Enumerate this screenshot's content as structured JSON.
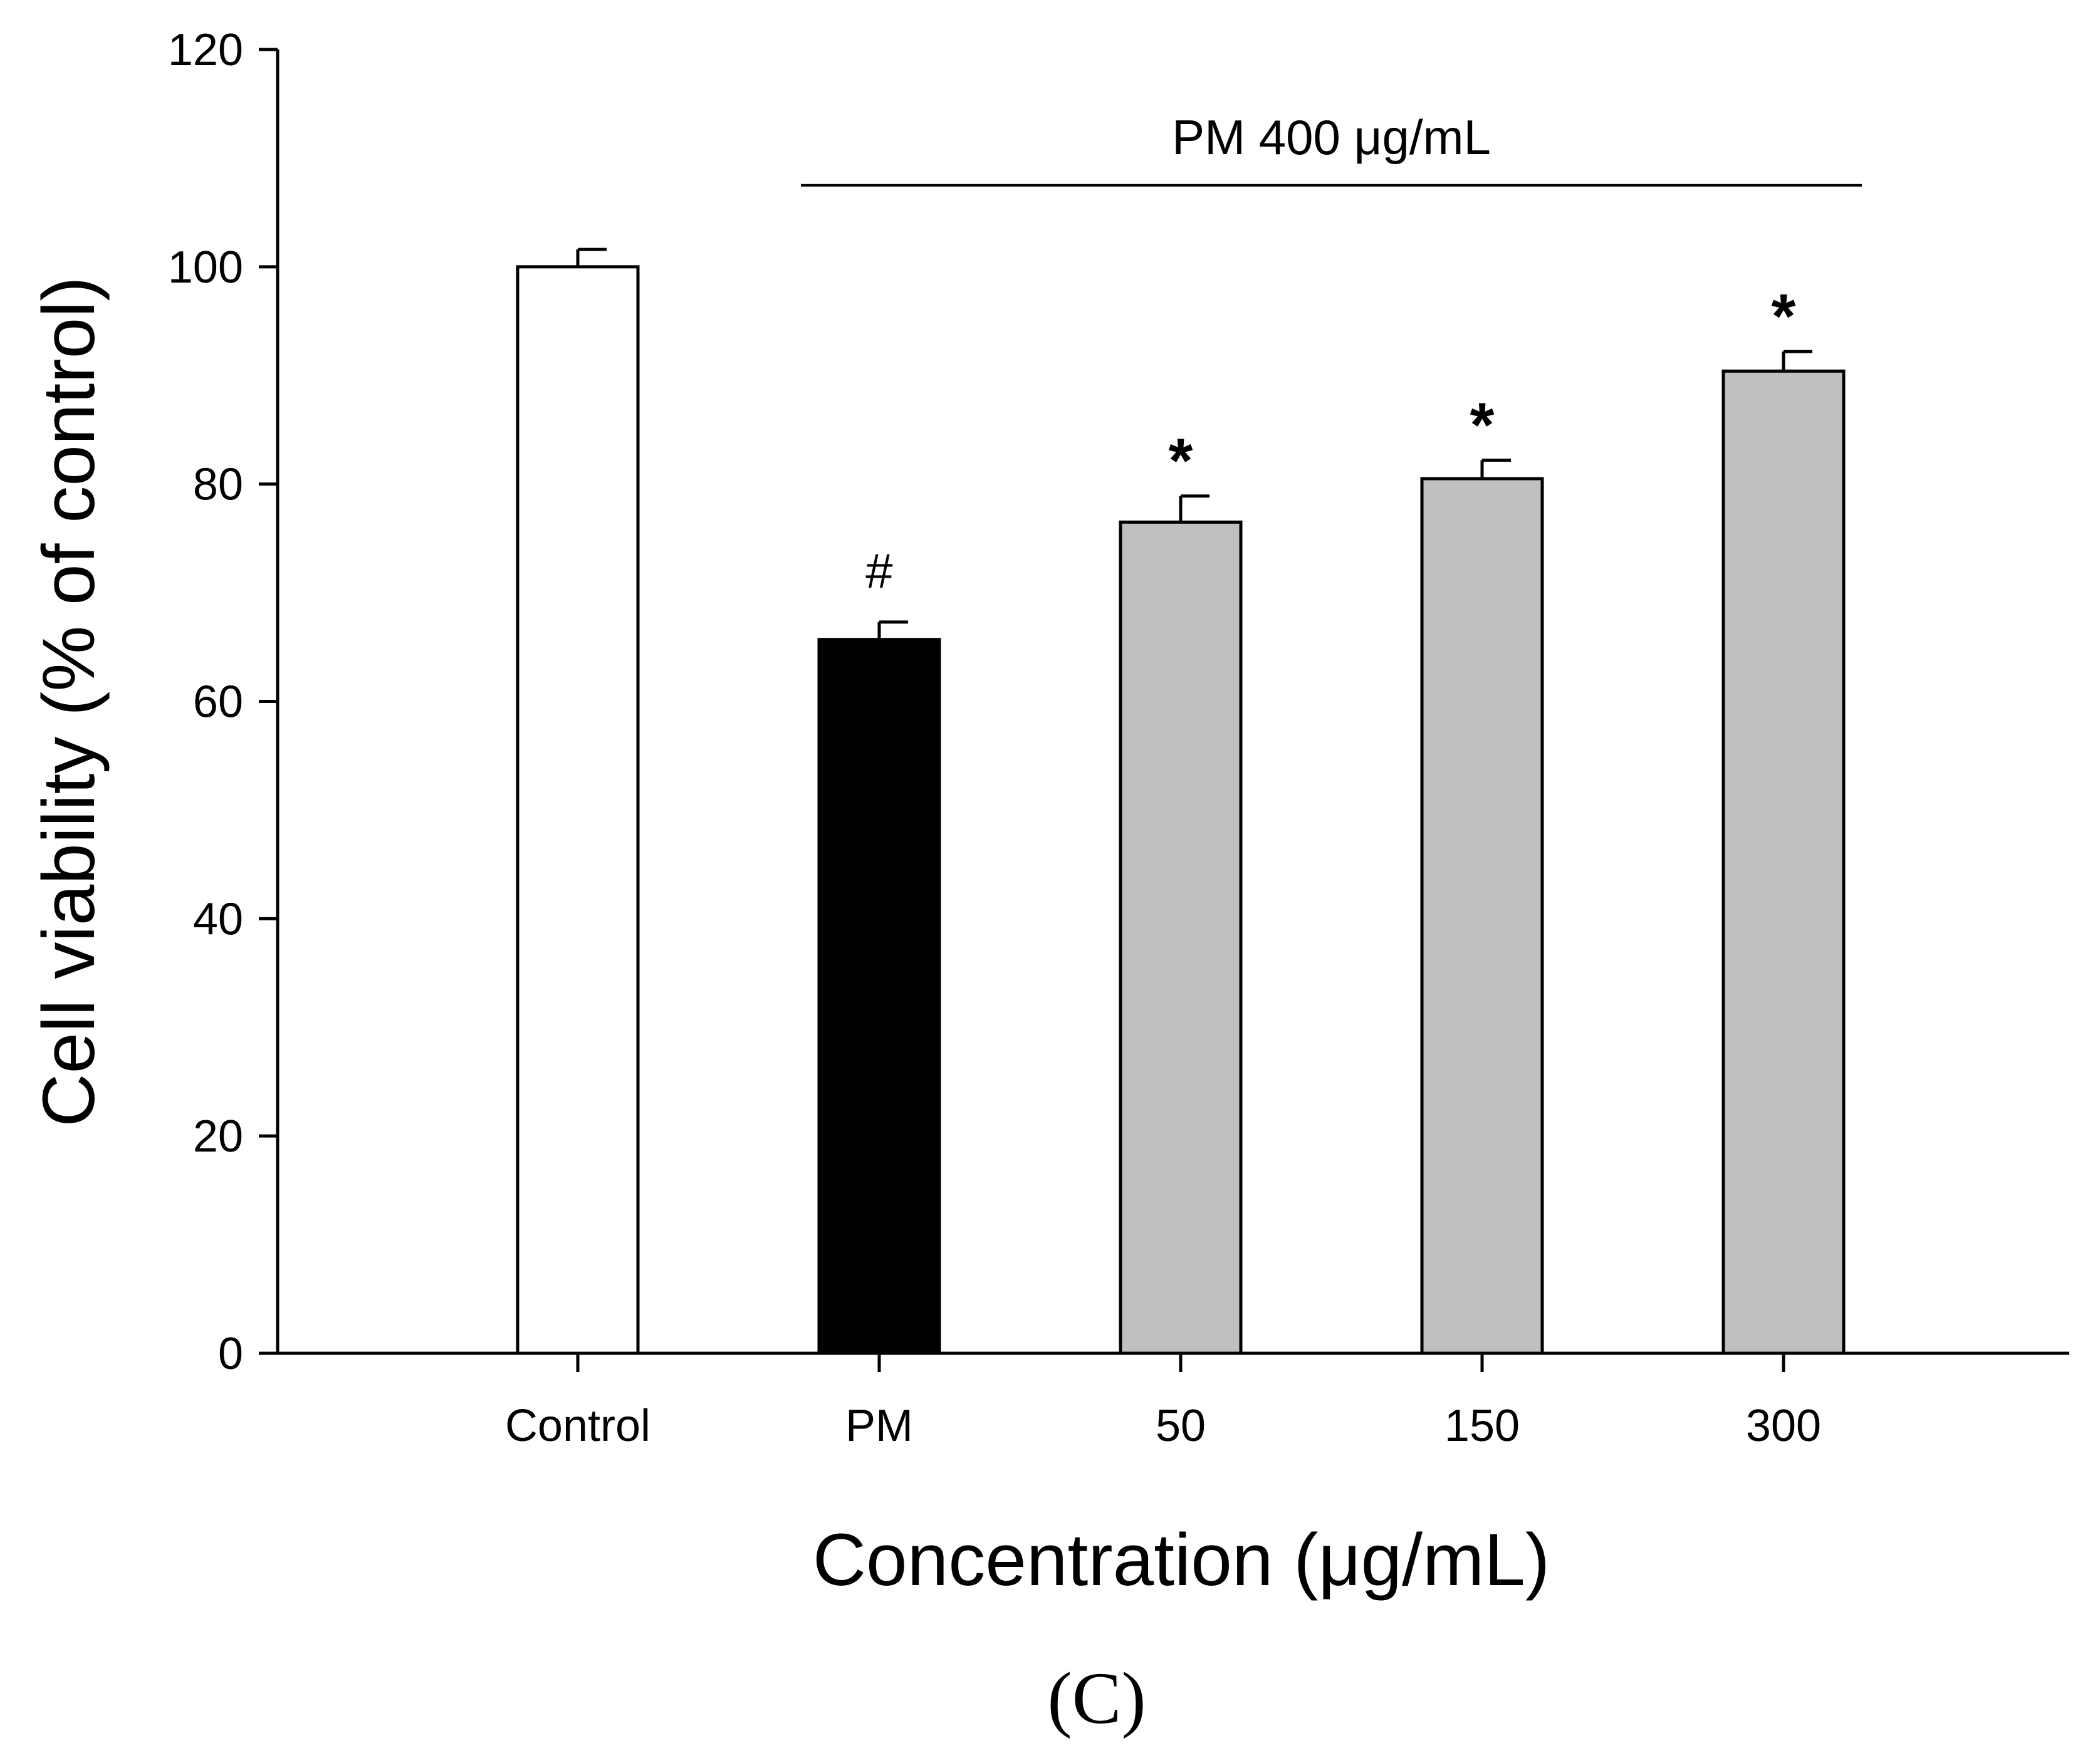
{
  "chart_data": {
    "type": "bar",
    "title": "",
    "panel_label": "(C)",
    "xlabel": "Concentration (μg/mL)",
    "ylabel": "Cell viability (% of control)",
    "ylim": [
      0,
      120
    ],
    "yticks": [
      0,
      20,
      40,
      60,
      80,
      100,
      120
    ],
    "ytick_labels": [
      "0",
      "20",
      "40",
      "60",
      "80",
      "100",
      "120"
    ],
    "grid": false,
    "categories": [
      "Control",
      "PM",
      "50",
      "150",
      "300"
    ],
    "values": [
      100,
      65.7,
      76.5,
      80.5,
      90.4
    ],
    "errors": [
      1.6,
      1.6,
      2.4,
      1.7,
      1.8
    ],
    "fills": [
      "#ffffff",
      "#000000",
      "#c0c0c0",
      "#c0c0c0",
      "#c0c0c0"
    ],
    "significance": [
      "",
      "#",
      "*",
      "*",
      "*"
    ],
    "bracket": {
      "label": "PM 400 μg/mL",
      "from_category": "PM",
      "to_category": "300",
      "value": 107.5
    }
  }
}
